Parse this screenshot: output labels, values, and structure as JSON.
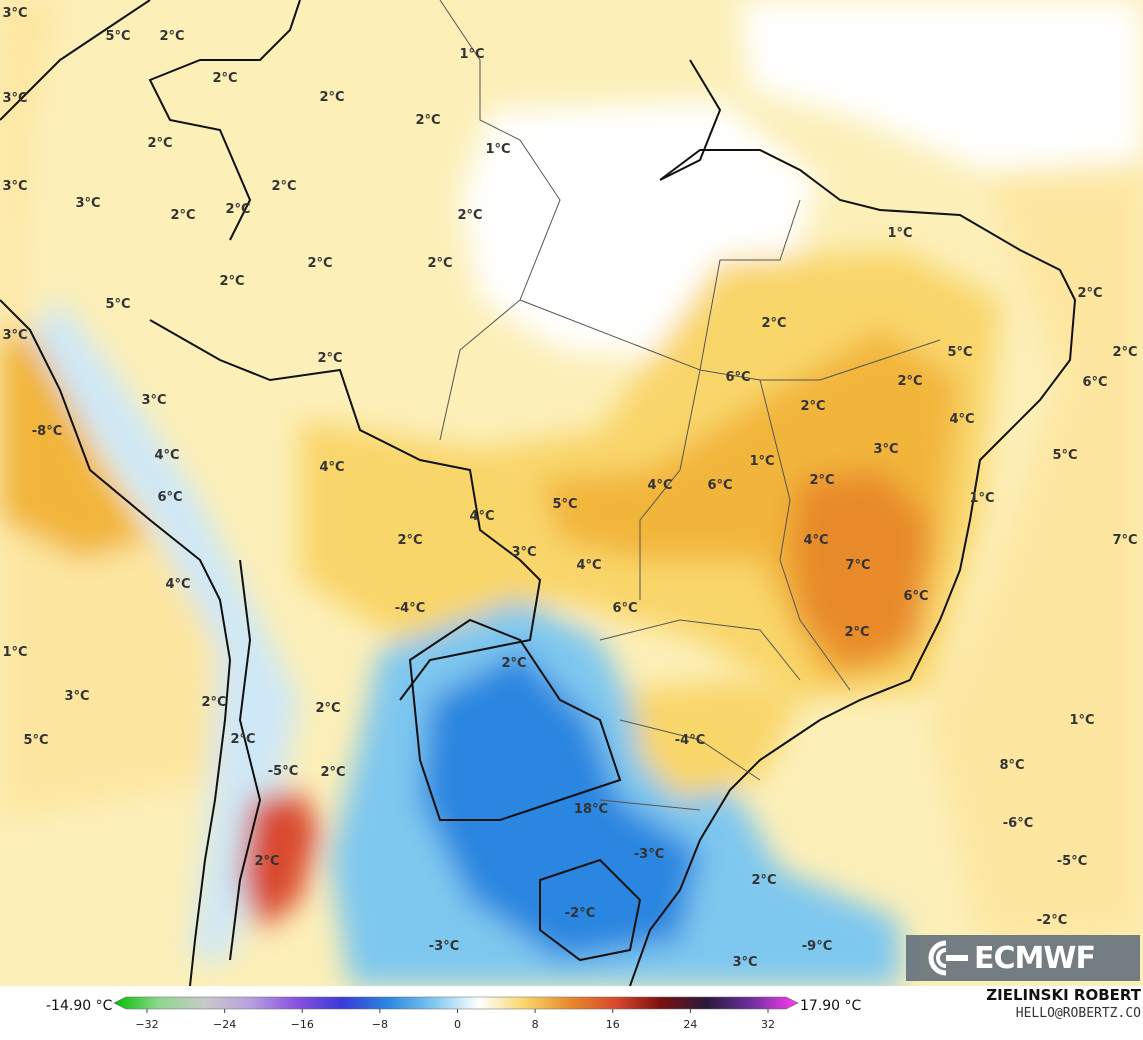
{
  "map": {
    "colors": {
      "sea_warm": "#fde6a0",
      "land_warm": "#fcefb8",
      "neutral": "#ffffff",
      "warm_1": "#f9d66a",
      "warm_2": "#f2b53a",
      "warm_3": "#e88a2a",
      "hot": "#d9482e",
      "very_hot": "#cc2d6a",
      "cool_1": "#cfe8f7",
      "cool_2": "#7ec7ef",
      "cool_3": "#45a8e8",
      "cold": "#2a86e0",
      "borders": "#111111",
      "state_borders": "#555555"
    },
    "labels": [
      {
        "id": "l1",
        "text": "3°C"
      },
      {
        "id": "l2",
        "text": "5°C"
      },
      {
        "id": "l3",
        "text": "2°C"
      },
      {
        "id": "l4",
        "text": "3°C"
      },
      {
        "id": "l5",
        "text": "2°C"
      },
      {
        "id": "l6",
        "text": "1°C"
      },
      {
        "id": "l7",
        "text": "2°C"
      },
      {
        "id": "l8",
        "text": "2°C"
      },
      {
        "id": "l9",
        "text": "2°C"
      },
      {
        "id": "l10",
        "text": "3°C"
      },
      {
        "id": "l11",
        "text": "2°C"
      },
      {
        "id": "l12",
        "text": "1°C"
      },
      {
        "id": "l13",
        "text": "3°C"
      },
      {
        "id": "l14",
        "text": "2°C"
      },
      {
        "id": "l15",
        "text": "2°C"
      },
      {
        "id": "l16",
        "text": "2°C"
      },
      {
        "id": "l17",
        "text": "1°C"
      },
      {
        "id": "l18",
        "text": "2°C"
      },
      {
        "id": "l19",
        "text": "2°C"
      },
      {
        "id": "l20",
        "text": "2°C"
      },
      {
        "id": "l21",
        "text": "2°C"
      },
      {
        "id": "l22",
        "text": "5°C"
      },
      {
        "id": "l23",
        "text": "2°C"
      },
      {
        "id": "l24",
        "text": "3°C"
      },
      {
        "id": "l25",
        "text": "2°C"
      },
      {
        "id": "l26",
        "text": "2°C"
      },
      {
        "id": "l27",
        "text": "5°C"
      },
      {
        "id": "l28",
        "text": "6°C"
      },
      {
        "id": "l29",
        "text": "2°C"
      },
      {
        "id": "l30",
        "text": "6°C"
      },
      {
        "id": "l31",
        "text": "3°C"
      },
      {
        "id": "l32",
        "text": "2°C"
      },
      {
        "id": "l33",
        "text": "4°C"
      },
      {
        "id": "l34",
        "text": "-8°C"
      },
      {
        "id": "l35",
        "text": "4°C"
      },
      {
        "id": "l36",
        "text": "3°C"
      },
      {
        "id": "l37",
        "text": "5°C"
      },
      {
        "id": "l38",
        "text": "1°C"
      },
      {
        "id": "l39",
        "text": "6°C"
      },
      {
        "id": "l40",
        "text": "4°C"
      },
      {
        "id": "l41",
        "text": "4°C"
      },
      {
        "id": "l42",
        "text": "6°C"
      },
      {
        "id": "l43",
        "text": "2°C"
      },
      {
        "id": "l44",
        "text": "1°C"
      },
      {
        "id": "l45",
        "text": "5°C"
      },
      {
        "id": "l46",
        "text": "4°C"
      },
      {
        "id": "l47",
        "text": "7°C"
      },
      {
        "id": "l48",
        "text": "2°C"
      },
      {
        "id": "l49",
        "text": "3°C"
      },
      {
        "id": "l50",
        "text": "4°C"
      },
      {
        "id": "l51",
        "text": "7°C"
      },
      {
        "id": "l52",
        "text": "4°C"
      },
      {
        "id": "l53",
        "text": "4°C"
      },
      {
        "id": "l54",
        "text": "6°C"
      },
      {
        "id": "l55",
        "text": "6°C"
      },
      {
        "id": "l56",
        "text": "-4°C"
      },
      {
        "id": "l57",
        "text": "2°C"
      },
      {
        "id": "l58",
        "text": "1°C"
      },
      {
        "id": "l59",
        "text": "2°C"
      },
      {
        "id": "l60",
        "text": "3°C"
      },
      {
        "id": "l61",
        "text": "2°C"
      },
      {
        "id": "l62",
        "text": "1°C"
      },
      {
        "id": "l63",
        "text": "2°C"
      },
      {
        "id": "l64",
        "text": "5°C"
      },
      {
        "id": "l65",
        "text": "2°C"
      },
      {
        "id": "l66",
        "text": "-4°C"
      },
      {
        "id": "l67",
        "text": "8°C"
      },
      {
        "id": "l68",
        "text": "-5°C"
      },
      {
        "id": "l69",
        "text": "2°C"
      },
      {
        "id": "l70",
        "text": "18°C"
      },
      {
        "id": "l71",
        "text": "-6°C"
      },
      {
        "id": "l72",
        "text": "2°C"
      },
      {
        "id": "l73",
        "text": "-3°C"
      },
      {
        "id": "l74",
        "text": "-5°C"
      },
      {
        "id": "l75",
        "text": "2°C"
      },
      {
        "id": "l76",
        "text": "-2°C"
      },
      {
        "id": "l77",
        "text": "-2°C"
      },
      {
        "id": "l78",
        "text": "-3°C"
      },
      {
        "id": "l79",
        "text": "-9°C"
      },
      {
        "id": "l80",
        "text": "3°C"
      }
    ]
  },
  "logo": {
    "text": "ECMWF"
  },
  "colorbar": {
    "min_label": "-14.90 °C",
    "max_label": "17.90 °C",
    "ticks": [
      "−32",
      "−24",
      "−16",
      "−8",
      "0",
      "8",
      "16",
      "24",
      "32"
    ],
    "stops": [
      "#00c000",
      "#8fd88f",
      "#c9c9c9",
      "#b8a0e0",
      "#8a50e0",
      "#3a3ad8",
      "#2a86e0",
      "#7ec7ef",
      "#ffffff",
      "#f9d66a",
      "#e88a2a",
      "#d9482e",
      "#7a1010",
      "#2a1a3a",
      "#7030a0",
      "#ff3cf0"
    ]
  },
  "credit": {
    "name": "ZIELINSKI ROBERT",
    "email": "HELLO@ROBERTZ.CO"
  }
}
